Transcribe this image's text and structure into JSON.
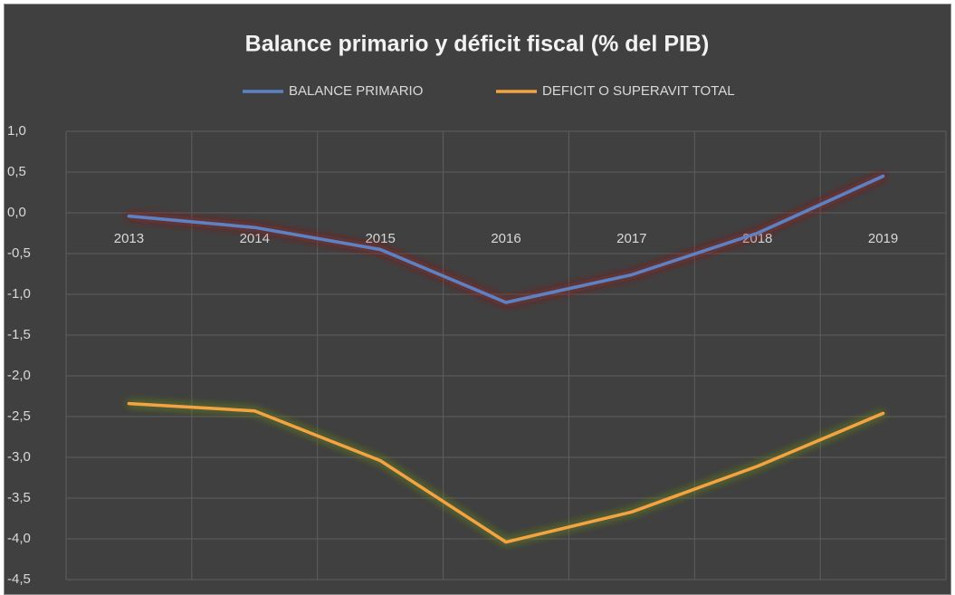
{
  "chart_data": {
    "type": "line",
    "title": "Balance primario y déficit fiscal (% del PIB)",
    "categories": [
      "2013",
      "2014",
      "2015",
      "2016",
      "2017",
      "2018",
      "2019"
    ],
    "series": [
      {
        "name": "BALANCE PRIMARIO",
        "color": "#5b82c6",
        "values": [
          -0.04,
          -0.18,
          -0.45,
          -1.1,
          -0.76,
          -0.25,
          0.45
        ]
      },
      {
        "name": "DEFICIT O SUPERAVIT TOTAL",
        "color": "#f5a33f",
        "values": [
          -2.34,
          -2.43,
          -3.04,
          -4.04,
          -3.67,
          -3.11,
          -2.46
        ]
      }
    ],
    "ylim": [
      -4.5,
      1.0
    ],
    "yticks": [
      {
        "value": 1.0,
        "label": "1,0"
      },
      {
        "value": 0.5,
        "label": "0,5"
      },
      {
        "value": 0.0,
        "label": "0,0"
      },
      {
        "value": -0.5,
        "label": "-0,5"
      },
      {
        "value": -1.0,
        "label": "-1,0"
      },
      {
        "value": -1.5,
        "label": "-1,5"
      },
      {
        "value": -2.0,
        "label": "-2,0"
      },
      {
        "value": -2.5,
        "label": "-2,5"
      },
      {
        "value": -3.0,
        "label": "-3,0"
      },
      {
        "value": -3.5,
        "label": "-3,5"
      },
      {
        "value": -4.0,
        "label": "-4,0"
      },
      {
        "value": -4.5,
        "label": "-4,5"
      }
    ],
    "grid": true,
    "legend": "top"
  }
}
